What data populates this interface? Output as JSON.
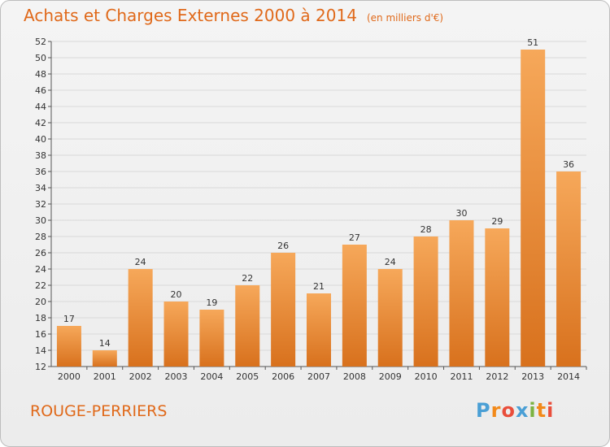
{
  "header": {
    "title": "Achats et Charges Externes 2000 à 2014",
    "subtitle": "(en milliers d'€)"
  },
  "commune": "ROUGE-PERRIERS",
  "logo": {
    "text": "Proxiti",
    "letters": [
      "P",
      "r",
      "o",
      "x",
      "i",
      "t",
      "i"
    ],
    "colors": [
      "#4a9fd5",
      "#f28a1b",
      "#e94e3b",
      "#4a9fd5",
      "#7cb342",
      "#f28a1b",
      "#e94e3b"
    ]
  },
  "colors": {
    "title": "#e0691a",
    "bar_light": "#f6a85a",
    "bar_dark": "#d8711d",
    "grid": "#d9d9d9"
  },
  "chart_data": {
    "type": "bar",
    "title": "Achats et Charges Externes 2000 à 2014",
    "subtitle": "(en milliers d'€)",
    "categories": [
      "2000",
      "2001",
      "2002",
      "2003",
      "2004",
      "2005",
      "2006",
      "2007",
      "2008",
      "2009",
      "2010",
      "2011",
      "2012",
      "2013",
      "2014"
    ],
    "values": [
      17,
      14,
      24,
      20,
      19,
      22,
      26,
      21,
      27,
      24,
      28,
      30,
      29,
      51,
      36
    ],
    "ylim": [
      12,
      52
    ],
    "yticks": [
      12,
      14,
      16,
      18,
      20,
      22,
      24,
      26,
      28,
      30,
      32,
      34,
      36,
      38,
      40,
      42,
      44,
      46,
      48,
      50,
      52
    ],
    "grid": true,
    "xlabel": "",
    "ylabel": ""
  }
}
